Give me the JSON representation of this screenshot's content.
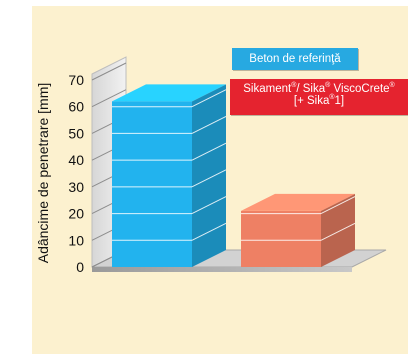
{
  "chart_data": {
    "type": "bar",
    "ylabel": "Adâncime de penetrare [mm]",
    "ylim": [
      0,
      70
    ],
    "yticks": [
      0,
      10,
      20,
      30,
      40,
      50,
      60,
      70
    ],
    "categories": [
      "Beton de referinţă",
      "Sikament®/ Sika® ViscoCrete® [+ Sika®1]"
    ],
    "values": [
      62,
      21
    ],
    "colors": [
      "#22b3ee",
      "#ee8064"
    ],
    "grid": true,
    "legend": [
      {
        "label": "Beton de referinţă",
        "color": "#27a9e1"
      },
      {
        "label_parts": [
          "Sikament",
          "®",
          "/ Sika",
          "®",
          " ViscoCrete",
          "®",
          "[+ Sika",
          "®",
          "1]"
        ],
        "color": "#e5232f"
      }
    ]
  }
}
